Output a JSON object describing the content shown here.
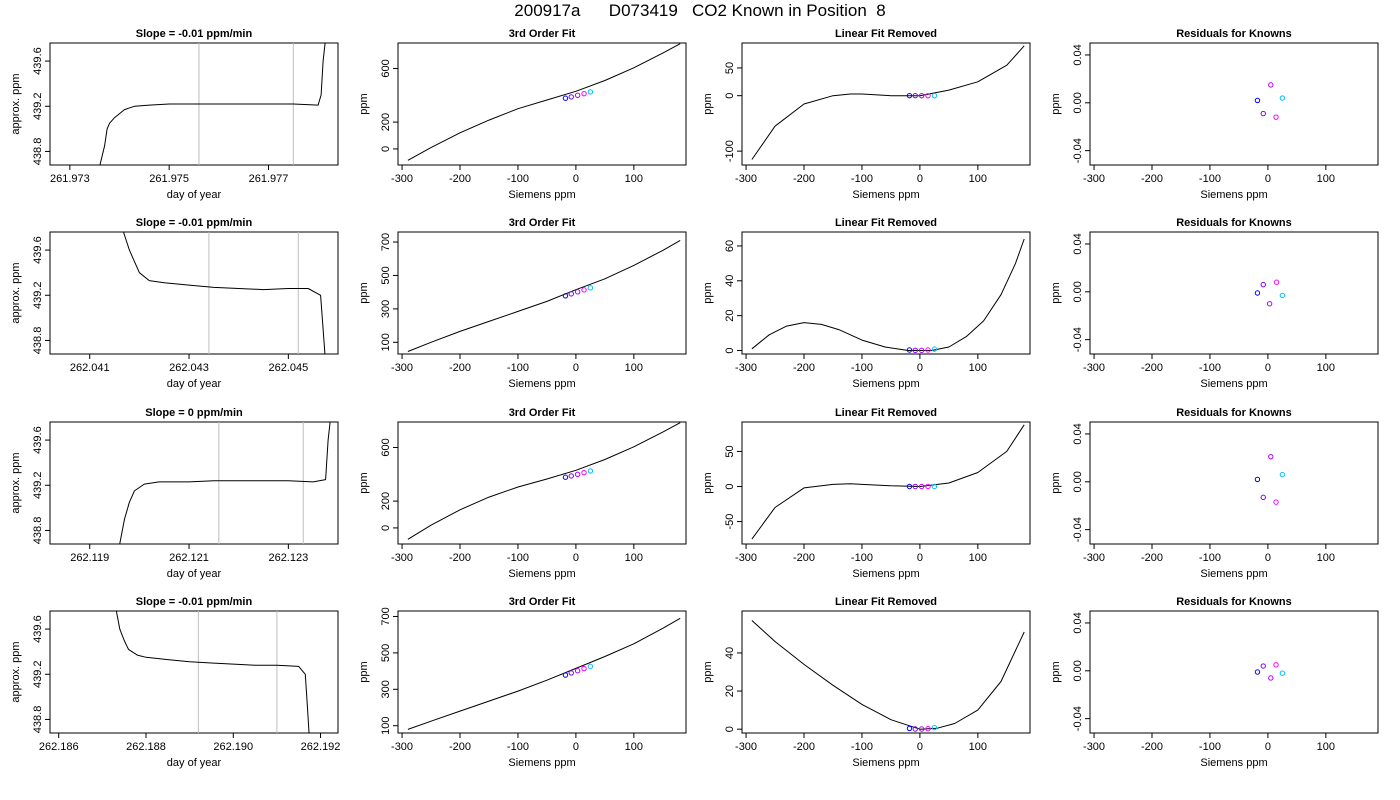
{
  "page": {
    "title": "200917a      D073419   CO2 Known in Position  8"
  },
  "colors": {
    "curve": "#000000",
    "axis": "#000000",
    "guide": "#bebebe",
    "knowns": [
      "#0000ff",
      "#7f00ff",
      "#b000ff",
      "#ff00ff",
      "#00bfff"
    ]
  },
  "chart_data": [
    {
      "id": "r1-trace",
      "type": "line",
      "title": "Slope =  -0.01  ppm/min",
      "xlabel": "day of year",
      "ylabel": "approx. ppm",
      "xlim": [
        261.9726,
        261.9784
      ],
      "ylim": [
        438.68,
        439.76
      ],
      "xticks": [
        261.973,
        261.975,
        261.977
      ],
      "yticks": [
        438.8,
        439.2,
        439.6
      ],
      "guides": [
        261.9756,
        261.9775
      ],
      "x": [
        261.9736,
        261.9737,
        261.97375,
        261.9738,
        261.9739,
        261.9741,
        261.9743,
        261.9746,
        261.975,
        261.9755,
        261.976,
        261.9765,
        261.977,
        261.9775,
        261.978,
        261.97806,
        261.9781,
        261.97815
      ],
      "y": [
        438.67,
        438.85,
        439.0,
        439.05,
        439.1,
        439.17,
        439.2,
        439.21,
        439.22,
        439.22,
        439.22,
        439.22,
        439.22,
        439.22,
        439.21,
        439.3,
        439.6,
        439.8
      ]
    },
    {
      "id": "r1-fit",
      "type": "line",
      "title": "3rd Order Fit",
      "xlabel": "Siemens ppm",
      "ylabel": "ppm",
      "xlim": [
        -307,
        190
      ],
      "ylim": [
        -120,
        790
      ],
      "xticks": [
        -300,
        -200,
        -100,
        0,
        100
      ],
      "yticks": [
        0,
        200,
        600
      ],
      "x": [
        -290,
        -250,
        -200,
        -150,
        -100,
        -50,
        0,
        50,
        100,
        150,
        180
      ],
      "y": [
        -85,
        10,
        120,
        215,
        300,
        365,
        430,
        510,
        605,
        715,
        785
      ],
      "points": {
        "x": [
          -18,
          -8,
          3,
          14,
          25
        ],
        "y": [
          378,
          388,
          400,
          412,
          425
        ]
      }
    },
    {
      "id": "r1-lin",
      "type": "line",
      "title": "Linear Fit Removed",
      "xlabel": "Siemens ppm",
      "ylabel": "ppm",
      "xlim": [
        -307,
        190
      ],
      "ylim": [
        -125,
        95
      ],
      "xticks": [
        -300,
        -200,
        -100,
        0,
        100
      ],
      "yticks": [
        -100,
        0,
        50
      ],
      "x": [
        -290,
        -250,
        -200,
        -150,
        -120,
        -100,
        -50,
        0,
        50,
        100,
        150,
        180
      ],
      "y": [
        -115,
        -55,
        -15,
        0,
        3,
        3,
        0,
        0,
        10,
        25,
        55,
        90
      ],
      "points": {
        "x": [
          -18,
          -8,
          3,
          14,
          25
        ],
        "y": [
          0,
          0,
          0,
          0,
          0
        ]
      }
    },
    {
      "id": "r1-res",
      "type": "scatter",
      "title": "Residuals for Knowns",
      "xlabel": "Siemens ppm",
      "ylabel": "ppm",
      "xlim": [
        -307,
        190
      ],
      "ylim": [
        -0.052,
        0.05
      ],
      "xticks": [
        -300,
        -200,
        -100,
        0,
        100
      ],
      "yticks": [
        -0.04,
        0.0,
        0.04
      ],
      "x": [
        -18,
        -8,
        5,
        14,
        25
      ],
      "y": [
        0.002,
        -0.009,
        0.015,
        -0.012,
        0.004
      ]
    },
    {
      "id": "r2-trace",
      "type": "line",
      "title": "Slope =  -0.01  ppm/min",
      "xlabel": "day of year",
      "ylabel": "approx. ppm",
      "xlim": [
        262.0402,
        262.046
      ],
      "ylim": [
        438.68,
        439.76
      ],
      "xticks": [
        262.041,
        262.043,
        262.045
      ],
      "yticks": [
        438.8,
        439.2,
        439.6
      ],
      "guides": [
        262.0434,
        262.0452
      ],
      "x": [
        262.04165,
        262.0418,
        262.0419,
        262.042,
        262.0422,
        262.0425,
        262.043,
        262.0435,
        262.044,
        262.0445,
        262.045,
        262.0454,
        262.04565,
        262.0457,
        262.04575
      ],
      "y": [
        439.8,
        439.6,
        439.5,
        439.4,
        439.33,
        439.31,
        439.29,
        439.27,
        439.26,
        439.25,
        439.26,
        439.26,
        439.2,
        438.9,
        438.6
      ]
    },
    {
      "id": "r2-fit",
      "type": "line",
      "title": "3rd Order Fit",
      "xlabel": "Siemens ppm",
      "ylabel": "ppm",
      "xlim": [
        -307,
        190
      ],
      "ylim": [
        30,
        760
      ],
      "xticks": [
        -300,
        -200,
        -100,
        0,
        100
      ],
      "yticks": [
        100,
        300,
        500,
        700
      ],
      "x": [
        -290,
        -250,
        -200,
        -150,
        -100,
        -50,
        0,
        50,
        100,
        150,
        180
      ],
      "y": [
        45,
        100,
        165,
        225,
        285,
        345,
        415,
        480,
        560,
        650,
        710
      ],
      "points": {
        "x": [
          -18,
          -8,
          3,
          14,
          25
        ],
        "y": [
          378,
          390,
          402,
          414,
          426
        ]
      }
    },
    {
      "id": "r2-lin",
      "type": "line",
      "title": "Linear Fit Removed",
      "xlabel": "Siemens ppm",
      "ylabel": "ppm",
      "xlim": [
        -307,
        190
      ],
      "ylim": [
        -2,
        68
      ],
      "xticks": [
        -300,
        -200,
        -100,
        0,
        100
      ],
      "yticks": [
        0,
        20,
        40,
        60
      ],
      "x": [
        -290,
        -260,
        -230,
        -200,
        -170,
        -140,
        -100,
        -60,
        -20,
        0,
        20,
        50,
        80,
        110,
        140,
        165,
        180
      ],
      "y": [
        1,
        9,
        14,
        16,
        15,
        12,
        6,
        2,
        0,
        0,
        0,
        2,
        8,
        17,
        32,
        50,
        64
      ],
      "points": {
        "x": [
          -18,
          -8,
          3,
          14,
          25
        ],
        "y": [
          0.3,
          0.1,
          0.1,
          0.3,
          0.8
        ]
      }
    },
    {
      "id": "r2-res",
      "type": "scatter",
      "title": "Residuals for Knowns",
      "xlabel": "Siemens ppm",
      "ylabel": "ppm",
      "xlim": [
        -307,
        190
      ],
      "ylim": [
        -0.052,
        0.05
      ],
      "xticks": [
        -300,
        -200,
        -100,
        0,
        100
      ],
      "yticks": [
        -0.04,
        0.0,
        0.04
      ],
      "x": [
        -18,
        -8,
        3,
        15,
        25
      ],
      "y": [
        -0.001,
        0.006,
        -0.01,
        0.008,
        -0.003
      ]
    },
    {
      "id": "r3-trace",
      "type": "line",
      "title": "Slope =  0  ppm/min",
      "xlabel": "day of year",
      "ylabel": "approx. ppm",
      "xlim": [
        262.1182,
        262.124
      ],
      "ylim": [
        438.68,
        439.76
      ],
      "xticks": [
        262.119,
        262.121,
        262.123
      ],
      "yticks": [
        438.8,
        439.2,
        439.6
      ],
      "guides": [
        262.1216,
        262.1233
      ],
      "x": [
        262.1196,
        262.1197,
        262.1198,
        262.1199,
        262.1201,
        262.1204,
        262.121,
        262.1215,
        262.122,
        262.1225,
        262.123,
        262.1235,
        262.12375,
        262.1238,
        262.12385
      ],
      "y": [
        438.67,
        438.9,
        439.05,
        439.15,
        439.21,
        439.23,
        439.23,
        439.24,
        439.24,
        439.24,
        439.24,
        439.23,
        439.25,
        439.6,
        439.8
      ]
    },
    {
      "id": "r3-fit",
      "type": "line",
      "title": "3rd Order Fit",
      "xlabel": "Siemens ppm",
      "ylabel": "ppm",
      "xlim": [
        -307,
        190
      ],
      "ylim": [
        -120,
        790
      ],
      "xticks": [
        -300,
        -200,
        -100,
        0,
        100
      ],
      "yticks": [
        0,
        200,
        600
      ],
      "x": [
        -290,
        -250,
        -200,
        -150,
        -100,
        -50,
        0,
        50,
        100,
        150,
        180
      ],
      "y": [
        -85,
        20,
        135,
        230,
        305,
        365,
        430,
        510,
        605,
        715,
        785
      ],
      "points": {
        "x": [
          -18,
          -8,
          3,
          14,
          25
        ],
        "y": [
          378,
          388,
          400,
          412,
          425
        ]
      }
    },
    {
      "id": "r3-lin",
      "type": "line",
      "title": "Linear Fit Removed",
      "xlabel": "Siemens ppm",
      "ylabel": "ppm",
      "xlim": [
        -307,
        190
      ],
      "ylim": [
        -82,
        92
      ],
      "xticks": [
        -300,
        -200,
        -100,
        0,
        100
      ],
      "yticks": [
        -50,
        0,
        50
      ],
      "x": [
        -290,
        -250,
        -200,
        -150,
        -120,
        -100,
        -50,
        0,
        50,
        100,
        150,
        180
      ],
      "y": [
        -75,
        -30,
        -2,
        3,
        4,
        3,
        1,
        0,
        5,
        20,
        50,
        88
      ],
      "points": {
        "x": [
          -18,
          -8,
          3,
          14,
          25
        ],
        "y": [
          0,
          0,
          0,
          0,
          0
        ]
      }
    },
    {
      "id": "r3-res",
      "type": "scatter",
      "title": "Residuals for Knowns",
      "xlabel": "Siemens ppm",
      "ylabel": "ppm",
      "xlim": [
        -307,
        190
      ],
      "ylim": [
        -0.052,
        0.05
      ],
      "xticks": [
        -300,
        -200,
        -100,
        0,
        100
      ],
      "yticks": [
        -0.04,
        0.0,
        0.04
      ],
      "x": [
        -18,
        -8,
        5,
        14,
        25
      ],
      "y": [
        0.002,
        -0.013,
        0.021,
        -0.017,
        0.006
      ]
    },
    {
      "id": "r4-trace",
      "type": "line",
      "title": "Slope =  -0.01  ppm/min",
      "xlabel": "day of year",
      "ylabel": "approx. ppm",
      "xlim": [
        262.1858,
        262.1924
      ],
      "ylim": [
        438.68,
        439.76
      ],
      "xticks": [
        262.186,
        262.188,
        262.19,
        262.192
      ],
      "xticklabels": [
        "262.186",
        "262.188",
        "262.190",
        "262.192"
      ],
      "yticks": [
        438.8,
        439.2,
        439.6
      ],
      "guides": [
        262.1892,
        262.191
      ],
      "x": [
        262.1873,
        262.1874,
        262.1875,
        262.1876,
        262.1878,
        262.188,
        262.1885,
        262.189,
        262.1895,
        262.19,
        262.1905,
        262.191,
        262.1915,
        262.19165,
        262.1917,
        262.19175
      ],
      "y": [
        439.8,
        439.6,
        439.5,
        439.42,
        439.37,
        439.35,
        439.33,
        439.31,
        439.3,
        439.29,
        439.28,
        439.28,
        439.27,
        439.2,
        438.9,
        438.6
      ]
    },
    {
      "id": "r4-fit",
      "type": "line",
      "title": "3rd Order Fit",
      "xlabel": "Siemens ppm",
      "ylabel": "ppm",
      "xlim": [
        -307,
        190
      ],
      "ylim": [
        60,
        730
      ],
      "xticks": [
        -300,
        -200,
        -100,
        0,
        100
      ],
      "yticks": [
        100,
        300,
        500,
        700
      ],
      "x": [
        -290,
        -250,
        -200,
        -150,
        -100,
        -50,
        0,
        50,
        100,
        150,
        180
      ],
      "y": [
        80,
        125,
        180,
        235,
        290,
        350,
        415,
        480,
        550,
        635,
        690
      ],
      "points": {
        "x": [
          -18,
          -8,
          3,
          14,
          25
        ],
        "y": [
          378,
          390,
          402,
          414,
          426
        ]
      }
    },
    {
      "id": "r4-lin",
      "type": "line",
      "title": "Linear Fit Removed",
      "xlabel": "Siemens ppm",
      "ylabel": "ppm",
      "xlim": [
        -307,
        190
      ],
      "ylim": [
        -2,
        62
      ],
      "xticks": [
        -300,
        -200,
        -100,
        0,
        100
      ],
      "yticks": [
        0,
        20,
        40
      ],
      "x": [
        -290,
        -250,
        -200,
        -150,
        -100,
        -50,
        0,
        30,
        60,
        100,
        140,
        180
      ],
      "y": [
        57,
        46,
        34,
        23,
        13,
        5,
        0,
        0.5,
        3,
        10,
        25,
        51
      ],
      "points": {
        "x": [
          -18,
          -8,
          3,
          14,
          25
        ],
        "y": [
          0.4,
          0.1,
          0.1,
          0.3,
          0.8
        ]
      }
    },
    {
      "id": "r4-res",
      "type": "scatter",
      "title": "Residuals for Knowns",
      "xlabel": "Siemens ppm",
      "ylabel": "ppm",
      "xlim": [
        -307,
        190
      ],
      "ylim": [
        -0.052,
        0.05
      ],
      "xticks": [
        -300,
        -200,
        -100,
        0,
        100
      ],
      "yticks": [
        -0.04,
        0.0,
        0.04
      ],
      "x": [
        -18,
        -8,
        5,
        14,
        25
      ],
      "y": [
        -0.001,
        0.004,
        -0.006,
        0.005,
        -0.002
      ]
    }
  ]
}
